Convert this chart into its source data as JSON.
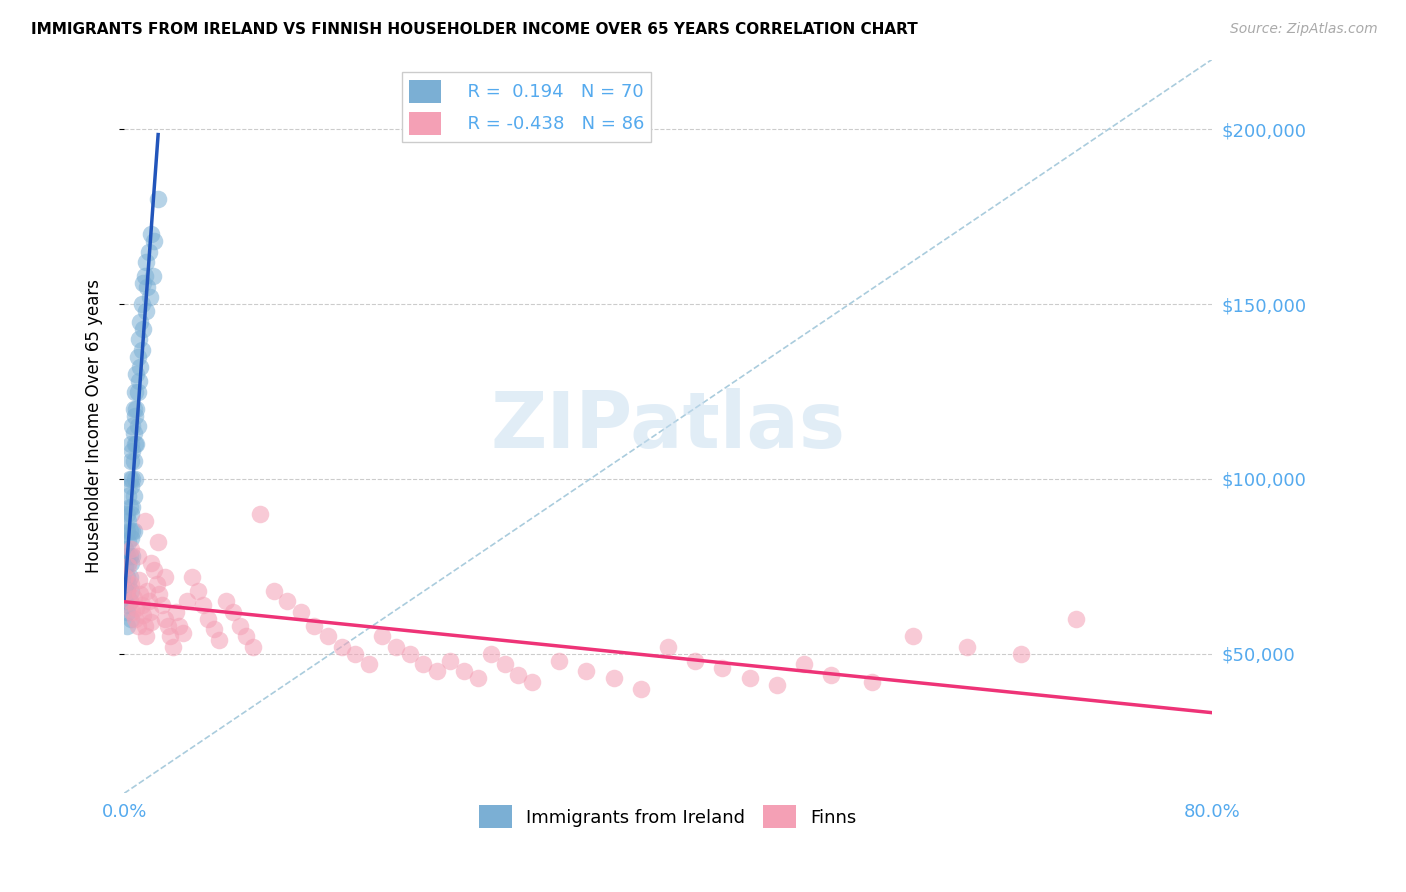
{
  "title": "IMMIGRANTS FROM IRELAND VS FINNISH HOUSEHOLDER INCOME OVER 65 YEARS CORRELATION CHART",
  "source": "Source: ZipAtlas.com",
  "ylabel": "Householder Income Over 65 years",
  "xmin": 0.0,
  "xmax": 0.8,
  "ymin": 10000,
  "ymax": 220000,
  "yticks": [
    50000,
    100000,
    150000,
    200000
  ],
  "ytick_labels": [
    "$50,000",
    "$100,000",
    "$150,000",
    "$200,000"
  ],
  "legend_label1": "Immigrants from Ireland",
  "legend_label2": "Finns",
  "blue_color": "#7BAFD4",
  "pink_color": "#F4A0B5",
  "trend_blue": "#2255BB",
  "trend_pink": "#EE3377",
  "grid_color": "#CCCCCC",
  "axis_label_color": "#55AAEE",
  "watermark_color": "#C5DCEF",
  "blue_R": 0.194,
  "pink_R": -0.438,
  "blue_N": 70,
  "pink_N": 86,
  "blue_scatter_x": [
    0.001,
    0.001,
    0.001,
    0.001,
    0.002,
    0.002,
    0.002,
    0.002,
    0.002,
    0.002,
    0.002,
    0.003,
    0.003,
    0.003,
    0.003,
    0.003,
    0.003,
    0.004,
    0.004,
    0.004,
    0.004,
    0.004,
    0.004,
    0.005,
    0.005,
    0.005,
    0.005,
    0.005,
    0.005,
    0.005,
    0.005,
    0.006,
    0.006,
    0.006,
    0.006,
    0.006,
    0.006,
    0.007,
    0.007,
    0.007,
    0.007,
    0.007,
    0.008,
    0.008,
    0.008,
    0.008,
    0.009,
    0.009,
    0.009,
    0.01,
    0.01,
    0.01,
    0.011,
    0.011,
    0.012,
    0.012,
    0.013,
    0.013,
    0.014,
    0.014,
    0.015,
    0.016,
    0.016,
    0.017,
    0.018,
    0.019,
    0.02,
    0.021,
    0.022,
    0.025
  ],
  "blue_scatter_y": [
    75000,
    80000,
    70000,
    65000,
    85000,
    90000,
    78000,
    72000,
    68000,
    62000,
    58000,
    95000,
    88000,
    82000,
    76000,
    70000,
    64000,
    100000,
    92000,
    85000,
    78000,
    72000,
    65000,
    110000,
    105000,
    98000,
    90000,
    83000,
    76000,
    68000,
    60000,
    115000,
    108000,
    100000,
    92000,
    85000,
    78000,
    120000,
    113000,
    105000,
    95000,
    85000,
    125000,
    118000,
    110000,
    100000,
    130000,
    120000,
    110000,
    135000,
    125000,
    115000,
    140000,
    128000,
    145000,
    132000,
    150000,
    137000,
    156000,
    143000,
    158000,
    162000,
    148000,
    155000,
    165000,
    152000,
    170000,
    158000,
    168000,
    180000
  ],
  "pink_scatter_x": [
    0.001,
    0.002,
    0.003,
    0.004,
    0.005,
    0.006,
    0.007,
    0.008,
    0.009,
    0.01,
    0.011,
    0.012,
    0.013,
    0.014,
    0.015,
    0.016,
    0.017,
    0.018,
    0.019,
    0.02,
    0.022,
    0.024,
    0.026,
    0.028,
    0.03,
    0.032,
    0.034,
    0.036,
    0.038,
    0.04,
    0.043,
    0.046,
    0.05,
    0.054,
    0.058,
    0.062,
    0.066,
    0.07,
    0.075,
    0.08,
    0.085,
    0.09,
    0.095,
    0.1,
    0.11,
    0.12,
    0.13,
    0.14,
    0.15,
    0.16,
    0.17,
    0.18,
    0.19,
    0.2,
    0.21,
    0.22,
    0.23,
    0.24,
    0.25,
    0.26,
    0.27,
    0.28,
    0.29,
    0.3,
    0.32,
    0.34,
    0.36,
    0.38,
    0.4,
    0.42,
    0.44,
    0.46,
    0.48,
    0.5,
    0.52,
    0.55,
    0.58,
    0.62,
    0.66,
    0.7,
    0.005,
    0.01,
    0.015,
    0.02,
    0.025,
    0.03
  ],
  "pink_scatter_y": [
    72000,
    68000,
    75000,
    65000,
    70000,
    62000,
    66000,
    60000,
    63000,
    58000,
    71000,
    67000,
    64000,
    61000,
    58000,
    55000,
    68000,
    65000,
    62000,
    59000,
    74000,
    70000,
    67000,
    64000,
    60000,
    58000,
    55000,
    52000,
    62000,
    58000,
    56000,
    65000,
    72000,
    68000,
    64000,
    60000,
    57000,
    54000,
    65000,
    62000,
    58000,
    55000,
    52000,
    90000,
    68000,
    65000,
    62000,
    58000,
    55000,
    52000,
    50000,
    47000,
    55000,
    52000,
    50000,
    47000,
    45000,
    48000,
    45000,
    43000,
    50000,
    47000,
    44000,
    42000,
    48000,
    45000,
    43000,
    40000,
    52000,
    48000,
    46000,
    43000,
    41000,
    47000,
    44000,
    42000,
    55000,
    52000,
    50000,
    60000,
    80000,
    78000,
    88000,
    76000,
    82000,
    72000
  ],
  "diag_line_color": "#AACCDD",
  "blue_trend_xend": 0.025,
  "pink_trend_xstart": 0.0,
  "pink_trend_xend": 0.8
}
